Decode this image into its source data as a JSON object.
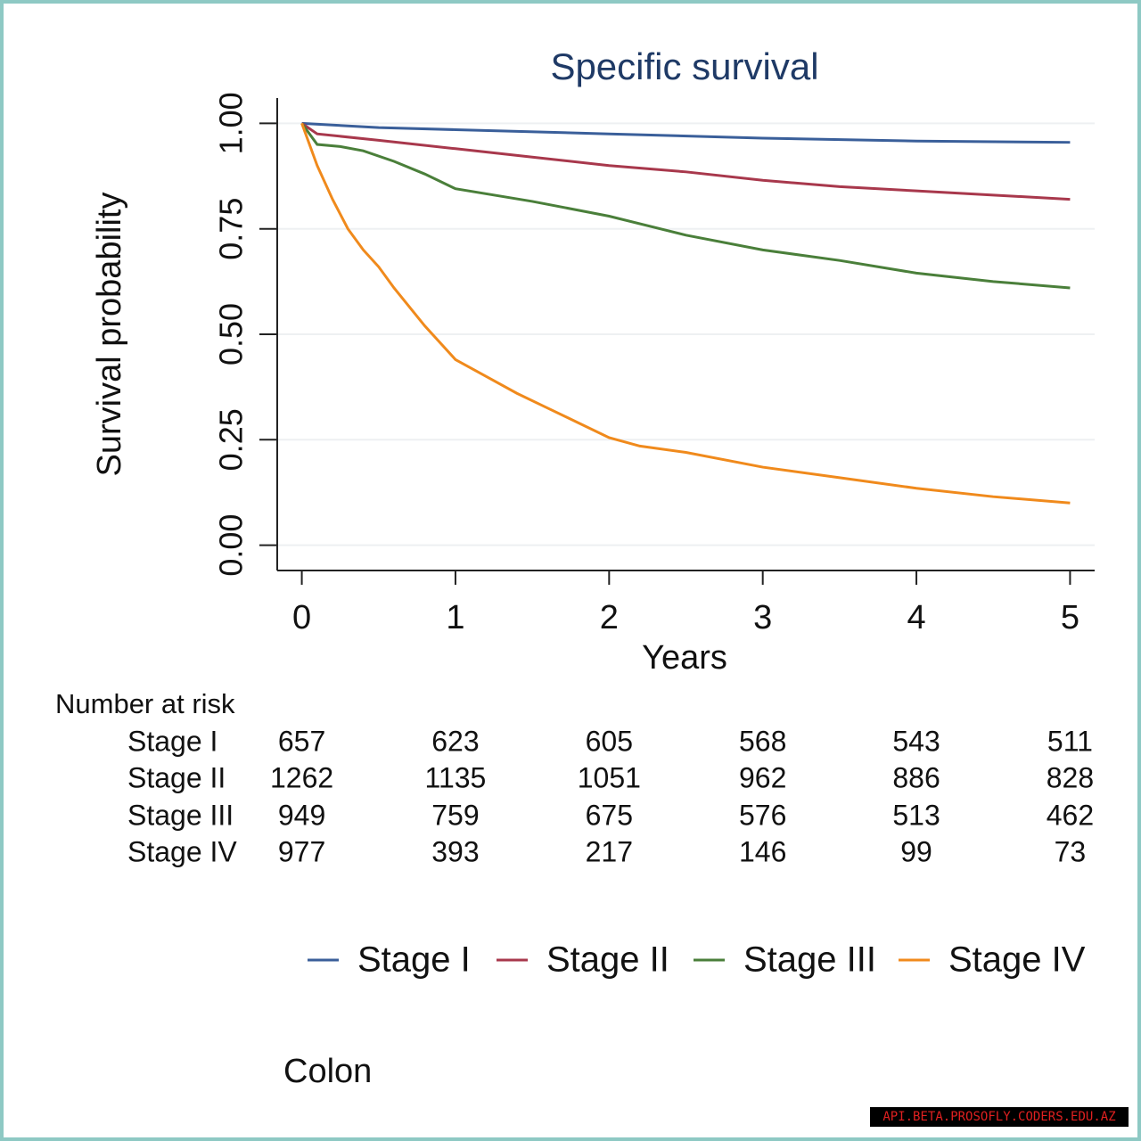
{
  "chart_data": {
    "type": "line",
    "title": "Specific survival",
    "xlabel": "Years",
    "ylabel": "Survival probability",
    "xlim": [
      -0.16,
      5.16
    ],
    "ylim": [
      -0.06,
      1.06
    ],
    "xticks": [
      0,
      1,
      2,
      3,
      4,
      5
    ],
    "yticks": [
      {
        "value": 0,
        "label": "0.00"
      },
      {
        "value": 0.25,
        "label": "0.25"
      },
      {
        "value": 0.5,
        "label": "0.50"
      },
      {
        "value": 0.75,
        "label": "0.75"
      },
      {
        "value": 1,
        "label": "1.00"
      }
    ],
    "grid": true,
    "series": [
      {
        "name": "Stage I",
        "color": "#3a5f9a",
        "x": [
          0,
          0.5,
          1,
          2,
          3,
          4,
          5
        ],
        "values": [
          1,
          0.99,
          0.985,
          0.975,
          0.965,
          0.958,
          0.955
        ]
      },
      {
        "name": "Stage II",
        "color": "#a8384c",
        "x": [
          0,
          0.1,
          0.5,
          1,
          1.5,
          2,
          2.5,
          3,
          3.5,
          4,
          4.5,
          5
        ],
        "values": [
          1,
          0.975,
          0.96,
          0.94,
          0.92,
          0.9,
          0.885,
          0.865,
          0.85,
          0.84,
          0.83,
          0.82
        ]
      },
      {
        "name": "Stage III",
        "color": "#4a7f3a",
        "x": [
          0,
          0.1,
          0.25,
          0.4,
          0.6,
          0.8,
          1,
          1.5,
          2,
          2.5,
          3,
          3.5,
          4,
          4.5,
          5
        ],
        "values": [
          1,
          0.95,
          0.945,
          0.935,
          0.91,
          0.88,
          0.845,
          0.815,
          0.78,
          0.735,
          0.7,
          0.675,
          0.645,
          0.625,
          0.61
        ]
      },
      {
        "name": "Stage IV",
        "color": "#f08a1c",
        "x": [
          0,
          0.1,
          0.2,
          0.3,
          0.4,
          0.5,
          0.6,
          0.8,
          1,
          1.2,
          1.4,
          1.6,
          1.8,
          2,
          2.2,
          2.5,
          3,
          3.5,
          4,
          4.5,
          5
        ],
        "values": [
          1,
          0.9,
          0.82,
          0.75,
          0.7,
          0.66,
          0.61,
          0.52,
          0.44,
          0.4,
          0.36,
          0.325,
          0.29,
          0.255,
          0.235,
          0.22,
          0.185,
          0.16,
          0.135,
          0.115,
          0.1
        ]
      }
    ],
    "risk_table": {
      "title": "Number at risk",
      "rows": [
        {
          "label": "Stage I",
          "values": [
            657,
            623,
            605,
            568,
            543,
            511
          ]
        },
        {
          "label": "Stage II",
          "values": [
            1262,
            1135,
            1051,
            962,
            886,
            828
          ]
        },
        {
          "label": "Stage III",
          "values": [
            949,
            759,
            675,
            576,
            513,
            462
          ]
        },
        {
          "label": "Stage IV",
          "values": [
            977,
            393,
            217,
            146,
            99,
            73
          ]
        }
      ]
    },
    "caption": "Colon",
    "watermark": "API.BETA.PROSOFLY.CODERS.EDU.AZ"
  }
}
